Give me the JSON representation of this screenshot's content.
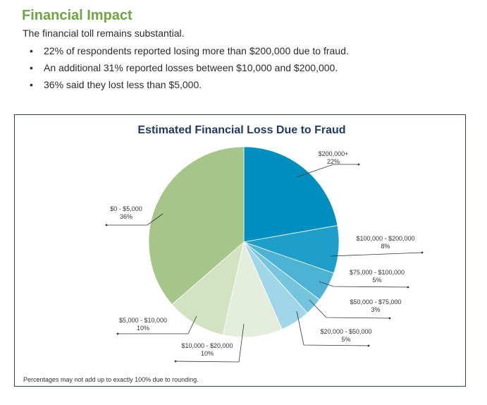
{
  "section": {
    "heading": "Financial Impact",
    "intro": "The financial toll remains substantial.",
    "bullets": [
      "22% of respondents reported losing more than $200,000 due to fraud.",
      "An additional 31% reported losses between $10,000 and $200,000.",
      "36% said they lost less than $5,000."
    ]
  },
  "chart_data": {
    "type": "pie",
    "title": "Estimated Financial Loss Due to Fraud",
    "note": "Percentages may not add up to exactly 100% due to rounding.",
    "slices": [
      {
        "label": "$200,000+",
        "value": 22,
        "value_label": "22%",
        "color": "#008fbe"
      },
      {
        "label": "$100,000 - $200,000",
        "value": 8,
        "value_label": "8%",
        "color": "#1d9fc9"
      },
      {
        "label": "$75,000 - $100,000",
        "value": 5,
        "value_label": "5%",
        "color": "#4cb3d4"
      },
      {
        "label": "$50,000 - $75,000",
        "value": 3,
        "value_label": "3%",
        "color": "#76c5df"
      },
      {
        "label": "$20,000 - $50,000",
        "value": 5,
        "value_label": "5%",
        "color": "#a1d6e8"
      },
      {
        "label": "$10,000 - $20,000",
        "value": 10,
        "value_label": "10%",
        "color": "#e5eedc"
      },
      {
        "label": "$5,000 - $10,000",
        "value": 10,
        "value_label": "10%",
        "color": "#d3e2c1"
      },
      {
        "label": "$0 - $5,000",
        "value": 36,
        "value_label": "36%",
        "color": "#a5c589"
      }
    ]
  }
}
